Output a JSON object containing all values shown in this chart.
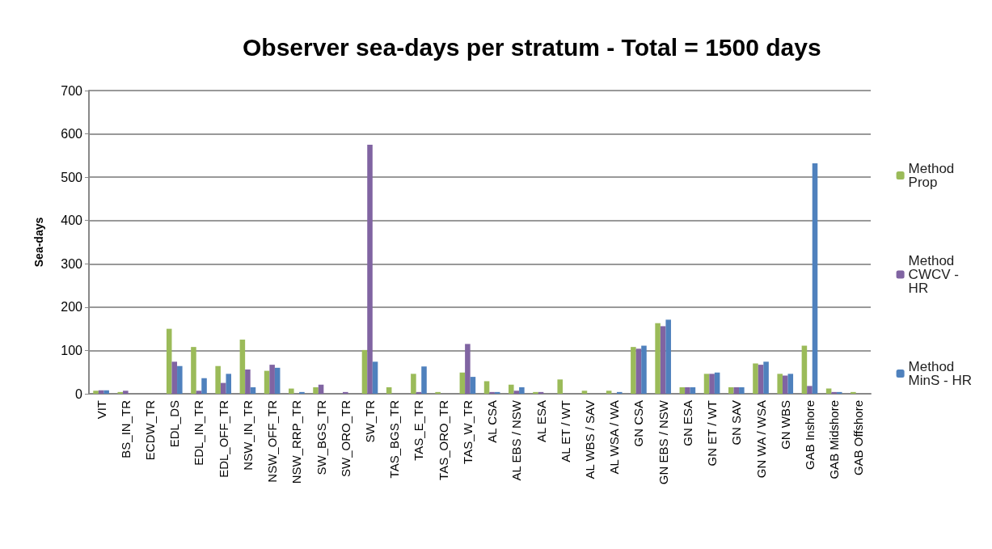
{
  "chart_data": {
    "type": "bar",
    "title": "Observer sea-days per stratum - Total = 1500 days",
    "ylabel": "Sea-days",
    "categories": [
      "VIT",
      "BS_IN_TR",
      "ECDW_TR",
      "EDL_DS",
      "EDL_IN_TR",
      "EDL_OFF_TR",
      "NSW_IN_TR",
      "NSW_OFF_TR",
      "NSW_RRP_TR",
      "SW_BGS_TR",
      "SW_ORO_TR",
      "SW_TR",
      "TAS_BGS_TR",
      "TAS_E_TR",
      "TAS_ORO_TR",
      "TAS_W_TR",
      "AL CSA",
      "AL EBS / NSW",
      "AL ESA",
      "AL ET / WT",
      "AL WBS / SAV",
      "AL WSA / WA",
      "GN CSA",
      "GN EBS / NSW",
      "GN ESA",
      "GN ET / WT",
      "GN SAV",
      "GN WA / WSA",
      "GN WBS",
      "GAB Inshore",
      "GAB Midshore",
      "GAB Offshore"
    ],
    "series": [
      {
        "name": "Method Prop",
        "color": "#9bbb59",
        "values": [
          7,
          4,
          0,
          150,
          108,
          64,
          125,
          53,
          12,
          15,
          0,
          101,
          15,
          46,
          4,
          49,
          29,
          21,
          4,
          33,
          7,
          7,
          108,
          163,
          15,
          46,
          15,
          70,
          46,
          111,
          12,
          4
        ]
      },
      {
        "name": "Method CWCV - HR",
        "color": "#8064a2",
        "values": [
          8,
          7,
          0,
          74,
          7,
          25,
          56,
          67,
          0,
          21,
          4,
          575,
          0,
          4,
          0,
          115,
          4,
          7,
          4,
          0,
          0,
          0,
          104,
          156,
          15,
          46,
          15,
          67,
          42,
          18,
          4,
          0
        ]
      },
      {
        "name": "Method MinS - HR",
        "color": "#4f81bd",
        "values": [
          8,
          0,
          0,
          64,
          36,
          46,
          15,
          60,
          4,
          0,
          0,
          74,
          0,
          63,
          0,
          39,
          4,
          15,
          0,
          0,
          0,
          4,
          111,
          171,
          15,
          49,
          15,
          74,
          46,
          532,
          4,
          0
        ]
      }
    ],
    "ylim": [
      0,
      700
    ],
    "yticks": [
      0,
      100,
      200,
      300,
      400,
      500,
      600,
      700
    ],
    "grid": "y",
    "legend": "right"
  }
}
